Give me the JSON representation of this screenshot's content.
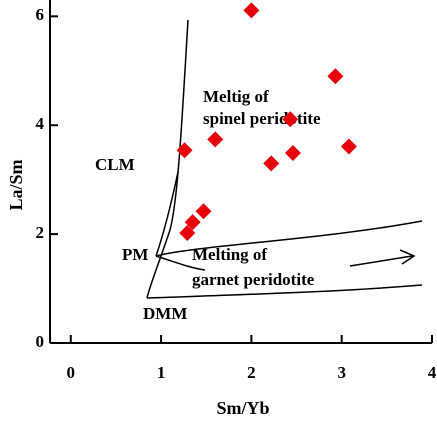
{
  "chart_data": {
    "type": "scatter",
    "x_label": "Sm/Yb",
    "y_label": "La/Sm",
    "x": [
      2.0,
      2.93,
      2.43,
      1.6,
      1.26,
      2.46,
      2.22,
      3.08,
      1.47,
      1.35,
      1.29
    ],
    "values": [
      6.11,
      4.9,
      4.11,
      3.74,
      3.54,
      3.49,
      3.3,
      3.61,
      2.42,
      2.22,
      2.02
    ],
    "color": "#e8000b",
    "xlim": [
      -0.23,
      4
    ],
    "ylim": [
      0,
      6.3
    ],
    "xticks": [
      0,
      1,
      2,
      3,
      4
    ],
    "yticks": [
      0,
      2,
      4,
      6
    ],
    "annotations": [
      "CLM",
      "PM",
      "DMM",
      "Meltig of",
      "spinel peridotite",
      "Melting of",
      "garnet peridotite"
    ]
  }
}
